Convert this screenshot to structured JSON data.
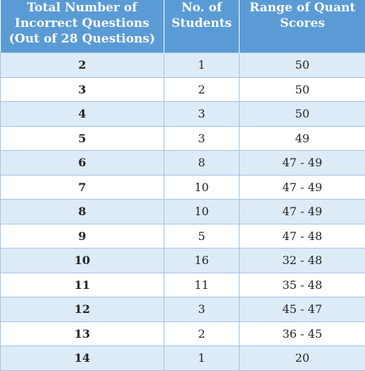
{
  "table": {
    "headers": [
      [
        "Total Number of",
        "Incorrect Questions",
        "(Out of 28 Questions)"
      ],
      [
        "No. of",
        "Students"
      ],
      [
        "Range of Quant",
        "Scores"
      ]
    ],
    "rows": [
      [
        "2",
        "1",
        "50"
      ],
      [
        "3",
        "2",
        "50"
      ],
      [
        "4",
        "3",
        "50"
      ],
      [
        "5",
        "3",
        "49"
      ],
      [
        "6",
        "8",
        "47 - 49"
      ],
      [
        "7",
        "10",
        "47 - 49"
      ],
      [
        "8",
        "10",
        "47 - 49"
      ],
      [
        "9",
        "5",
        "47 - 48"
      ],
      [
        "10",
        "16",
        "32 - 48"
      ],
      [
        "11",
        "11",
        "35 - 48"
      ],
      [
        "12",
        "3",
        "45 - 47"
      ],
      [
        "13",
        "2",
        "36 - 45"
      ],
      [
        "14",
        "1",
        "20"
      ]
    ]
  },
  "colors": {
    "header_bg": "#5b9bd5",
    "band_bg": "#ddebf7",
    "grid": "#9dc3e6"
  }
}
